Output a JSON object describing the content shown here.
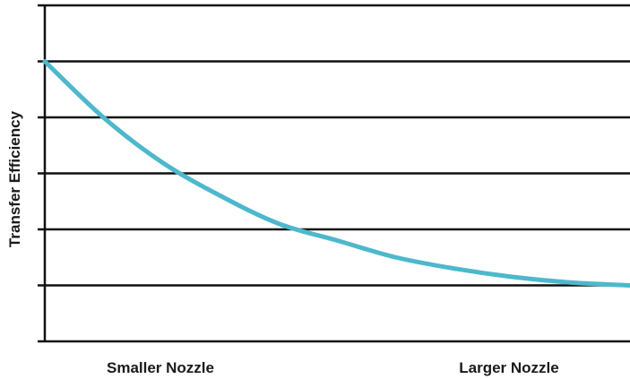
{
  "chart_data": {
    "type": "line",
    "title": "",
    "ylabel": "Transfer Efficiency",
    "xlabel": "",
    "categories": [
      "Smaller Nozzle",
      "Larger Nozzle"
    ],
    "xlim": [
      0,
      1
    ],
    "ylim": [
      0,
      6
    ],
    "y_ticks": [
      0,
      1,
      2,
      3,
      4,
      5,
      6
    ],
    "grid": true,
    "legend": "none",
    "line_color": "#4db8cc",
    "series": [
      {
        "x": [
          0,
          0.1,
          0.2,
          0.3,
          0.4,
          0.5,
          0.6,
          0.7,
          0.8,
          0.9,
          1.0
        ],
        "values": [
          5.0,
          4.0,
          3.2,
          2.6,
          2.1,
          1.8,
          1.5,
          1.3,
          1.15,
          1.05,
          1.0
        ]
      }
    ]
  }
}
